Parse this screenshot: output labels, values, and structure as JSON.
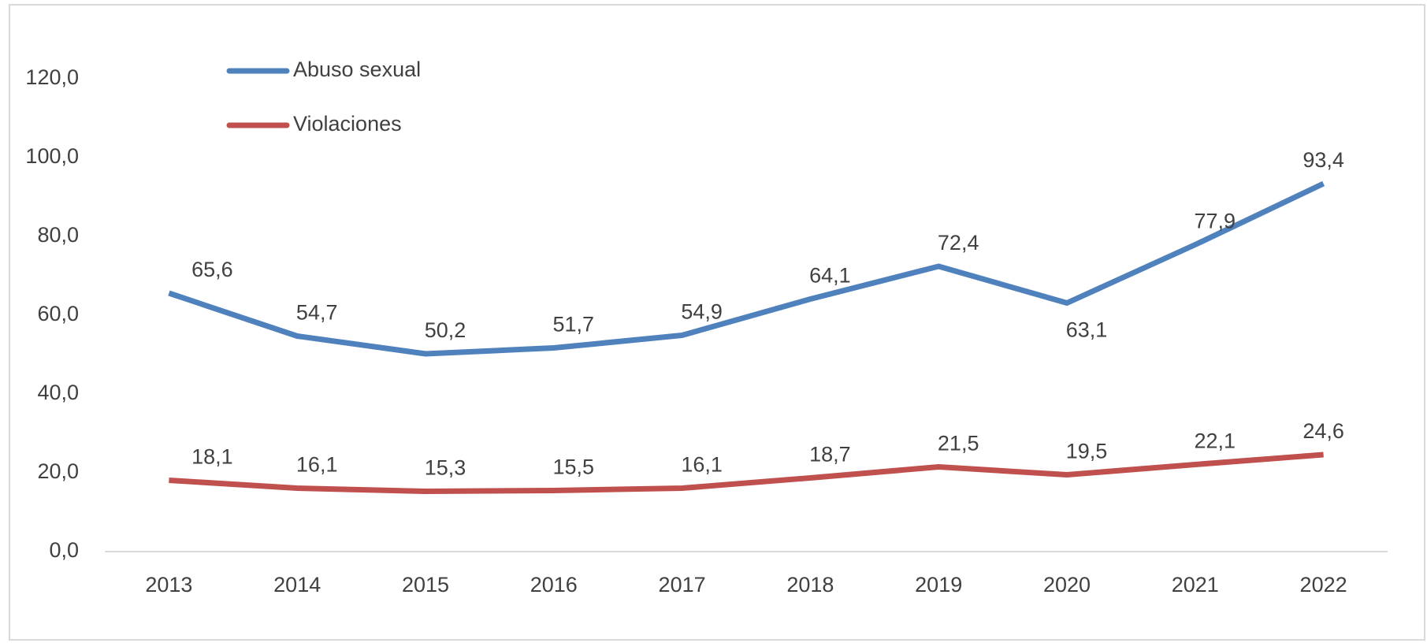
{
  "chart_data": {
    "type": "line",
    "categories": [
      "2013",
      "2014",
      "2015",
      "2016",
      "2017",
      "2018",
      "2019",
      "2020",
      "2021",
      "2022"
    ],
    "series": [
      {
        "name": "Abuso sexual",
        "color": "#4f81bd",
        "values": [
          65.6,
          54.7,
          50.2,
          51.7,
          54.9,
          64.1,
          72.4,
          63.1,
          77.9,
          93.4
        ],
        "value_labels": [
          "65,6",
          "54,7",
          "50,2",
          "51,7",
          "54,9",
          "64,1",
          "72,4",
          "63,1",
          "77,9",
          "93,4"
        ]
      },
      {
        "name": "Violaciones",
        "color": "#c0504d",
        "values": [
          18.1,
          16.1,
          15.3,
          15.5,
          16.1,
          18.7,
          21.5,
          19.5,
          22.1,
          24.6
        ],
        "value_labels": [
          "18,1",
          "16,1",
          "15,3",
          "15,5",
          "16,1",
          "18,7",
          "21,5",
          "19,5",
          "22,1",
          "24,6"
        ]
      }
    ],
    "ylim": [
      0,
      120
    ],
    "yticks": [
      {
        "value": 0,
        "label": "0,0"
      },
      {
        "value": 20,
        "label": "20,0"
      },
      {
        "value": 40,
        "label": "40,0"
      },
      {
        "value": 60,
        "label": "60,0"
      },
      {
        "value": 80,
        "label": "80,0"
      },
      {
        "value": 100,
        "label": "100,0"
      },
      {
        "value": 120,
        "label": "120,0"
      }
    ],
    "grid": false,
    "legend": "top-left"
  }
}
